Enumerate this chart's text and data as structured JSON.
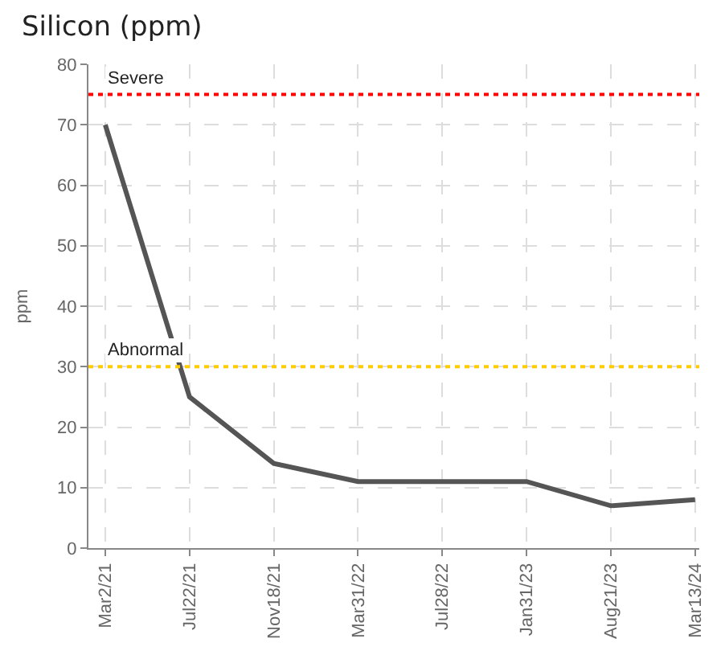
{
  "chart_data": {
    "type": "line",
    "title": "Silicon (ppm)",
    "ylabel": "ppm",
    "categories": [
      "Mar2/21",
      "Jul22/21",
      "Nov18/21",
      "Mar31/22",
      "Jul28/22",
      "Jan31/23",
      "Aug21/23",
      "Mar13/24"
    ],
    "series": [
      {
        "color": "#555555",
        "values": [
          70,
          25,
          14,
          11,
          11,
          11,
          7,
          8
        ]
      }
    ],
    "ylim": [
      0,
      80
    ],
    "yticks": [
      0,
      10,
      20,
      30,
      40,
      50,
      60,
      70,
      80
    ],
    "grid": true,
    "line_style": "solid",
    "ref_lines": [
      {
        "axis": "y",
        "value": 75,
        "label": "Severe",
        "color": "#ff0000",
        "line_style": "dotted"
      },
      {
        "axis": "y",
        "value": 30,
        "label": "Abnormal",
        "color": "#ffcc00",
        "line_style": "dotted"
      }
    ]
  }
}
